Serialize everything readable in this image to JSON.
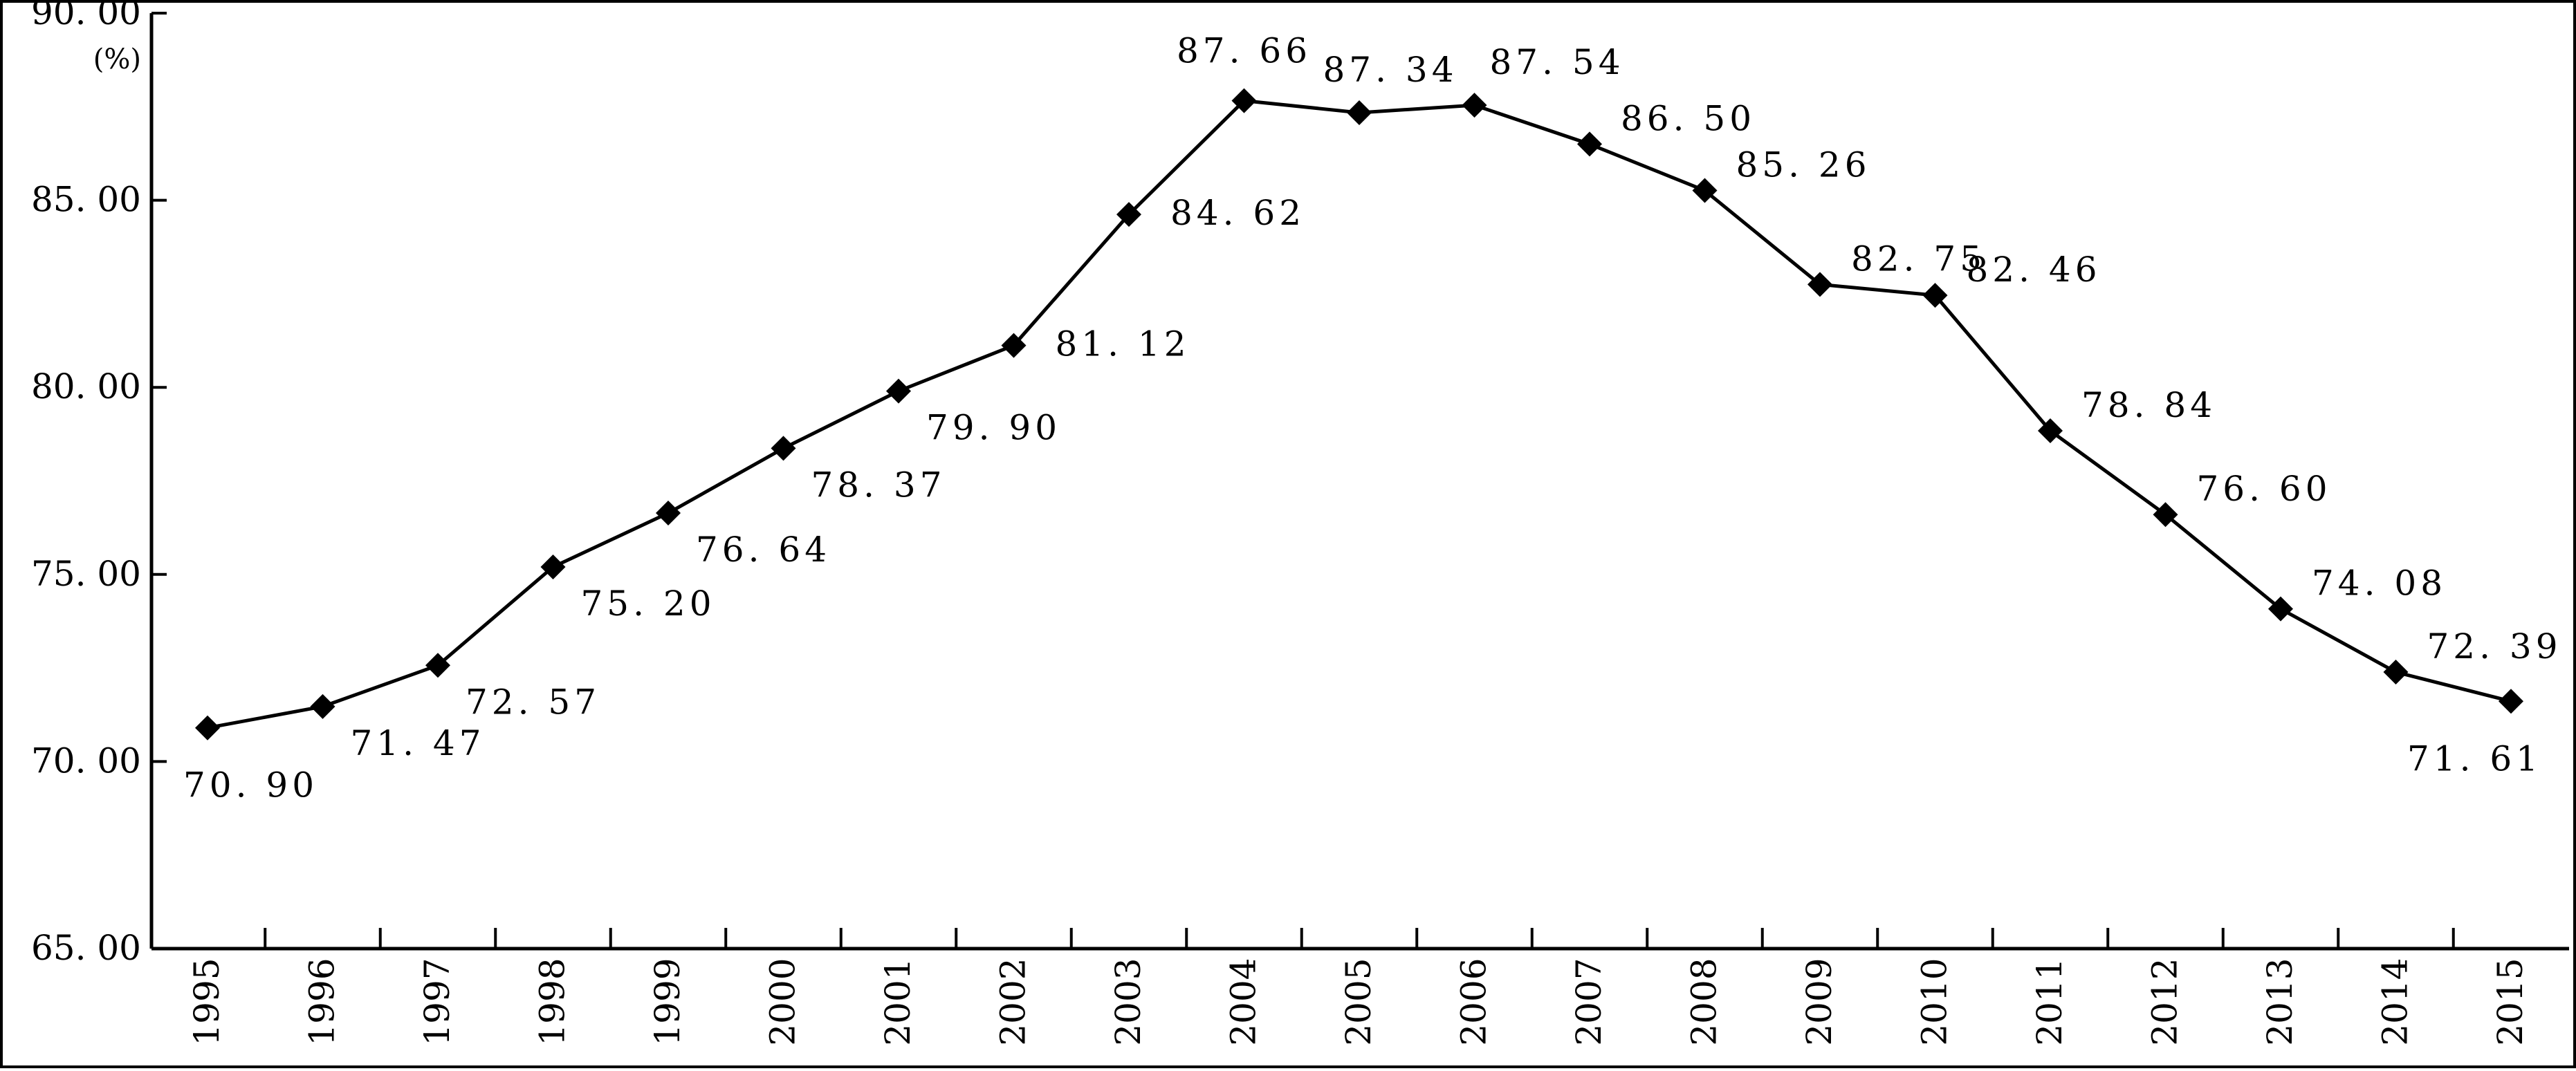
{
  "chart_data": {
    "type": "line",
    "title": "",
    "xlabel": "",
    "ylabel": "(%)",
    "unit_label": "(%)",
    "ylim": [
      65,
      90
    ],
    "yticks": [
      "65. 00",
      "70. 00",
      "75. 00",
      "80. 00",
      "85. 00",
      "90. 00"
    ],
    "categories": [
      "1995",
      "1996",
      "1997",
      "1998",
      "1999",
      "2000",
      "2001",
      "2002",
      "2003",
      "2004",
      "2005",
      "2006",
      "2007",
      "2008",
      "2009",
      "2010",
      "2011",
      "2012",
      "2013",
      "2014",
      "2015"
    ],
    "values": [
      70.9,
      71.47,
      72.57,
      75.2,
      76.64,
      78.37,
      79.9,
      81.12,
      84.62,
      87.66,
      87.34,
      87.54,
      86.5,
      85.26,
      82.75,
      82.46,
      78.84,
      76.6,
      74.08,
      72.39,
      71.61
    ],
    "data_labels": [
      "70. 90",
      "71. 47",
      "72. 57",
      "75. 20",
      "76. 64",
      "78. 37",
      "79. 90",
      "81. 12",
      "84. 62",
      "87. 66",
      "87. 34",
      "87. 54",
      "86. 50",
      "85. 26",
      "82. 75",
      "82. 46",
      "78. 84",
      "76. 60",
      "74. 08",
      "72. 39",
      "71. 61"
    ],
    "grid": false,
    "legend": "none",
    "line_color": "#000000",
    "marker": "diamond"
  }
}
